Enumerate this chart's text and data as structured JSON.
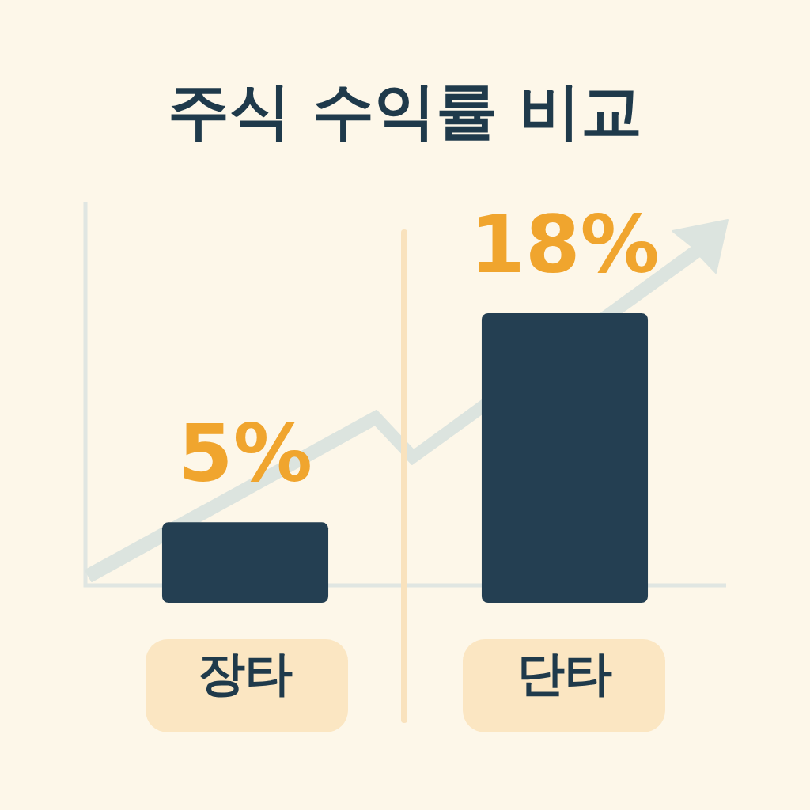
{
  "chart_data": {
    "type": "bar",
    "title": "주식 수익률 비교",
    "categories": [
      "장타",
      "단타"
    ],
    "values": [
      5,
      18
    ],
    "value_labels": [
      "5%",
      "18%"
    ],
    "color": "#243f52"
  }
}
